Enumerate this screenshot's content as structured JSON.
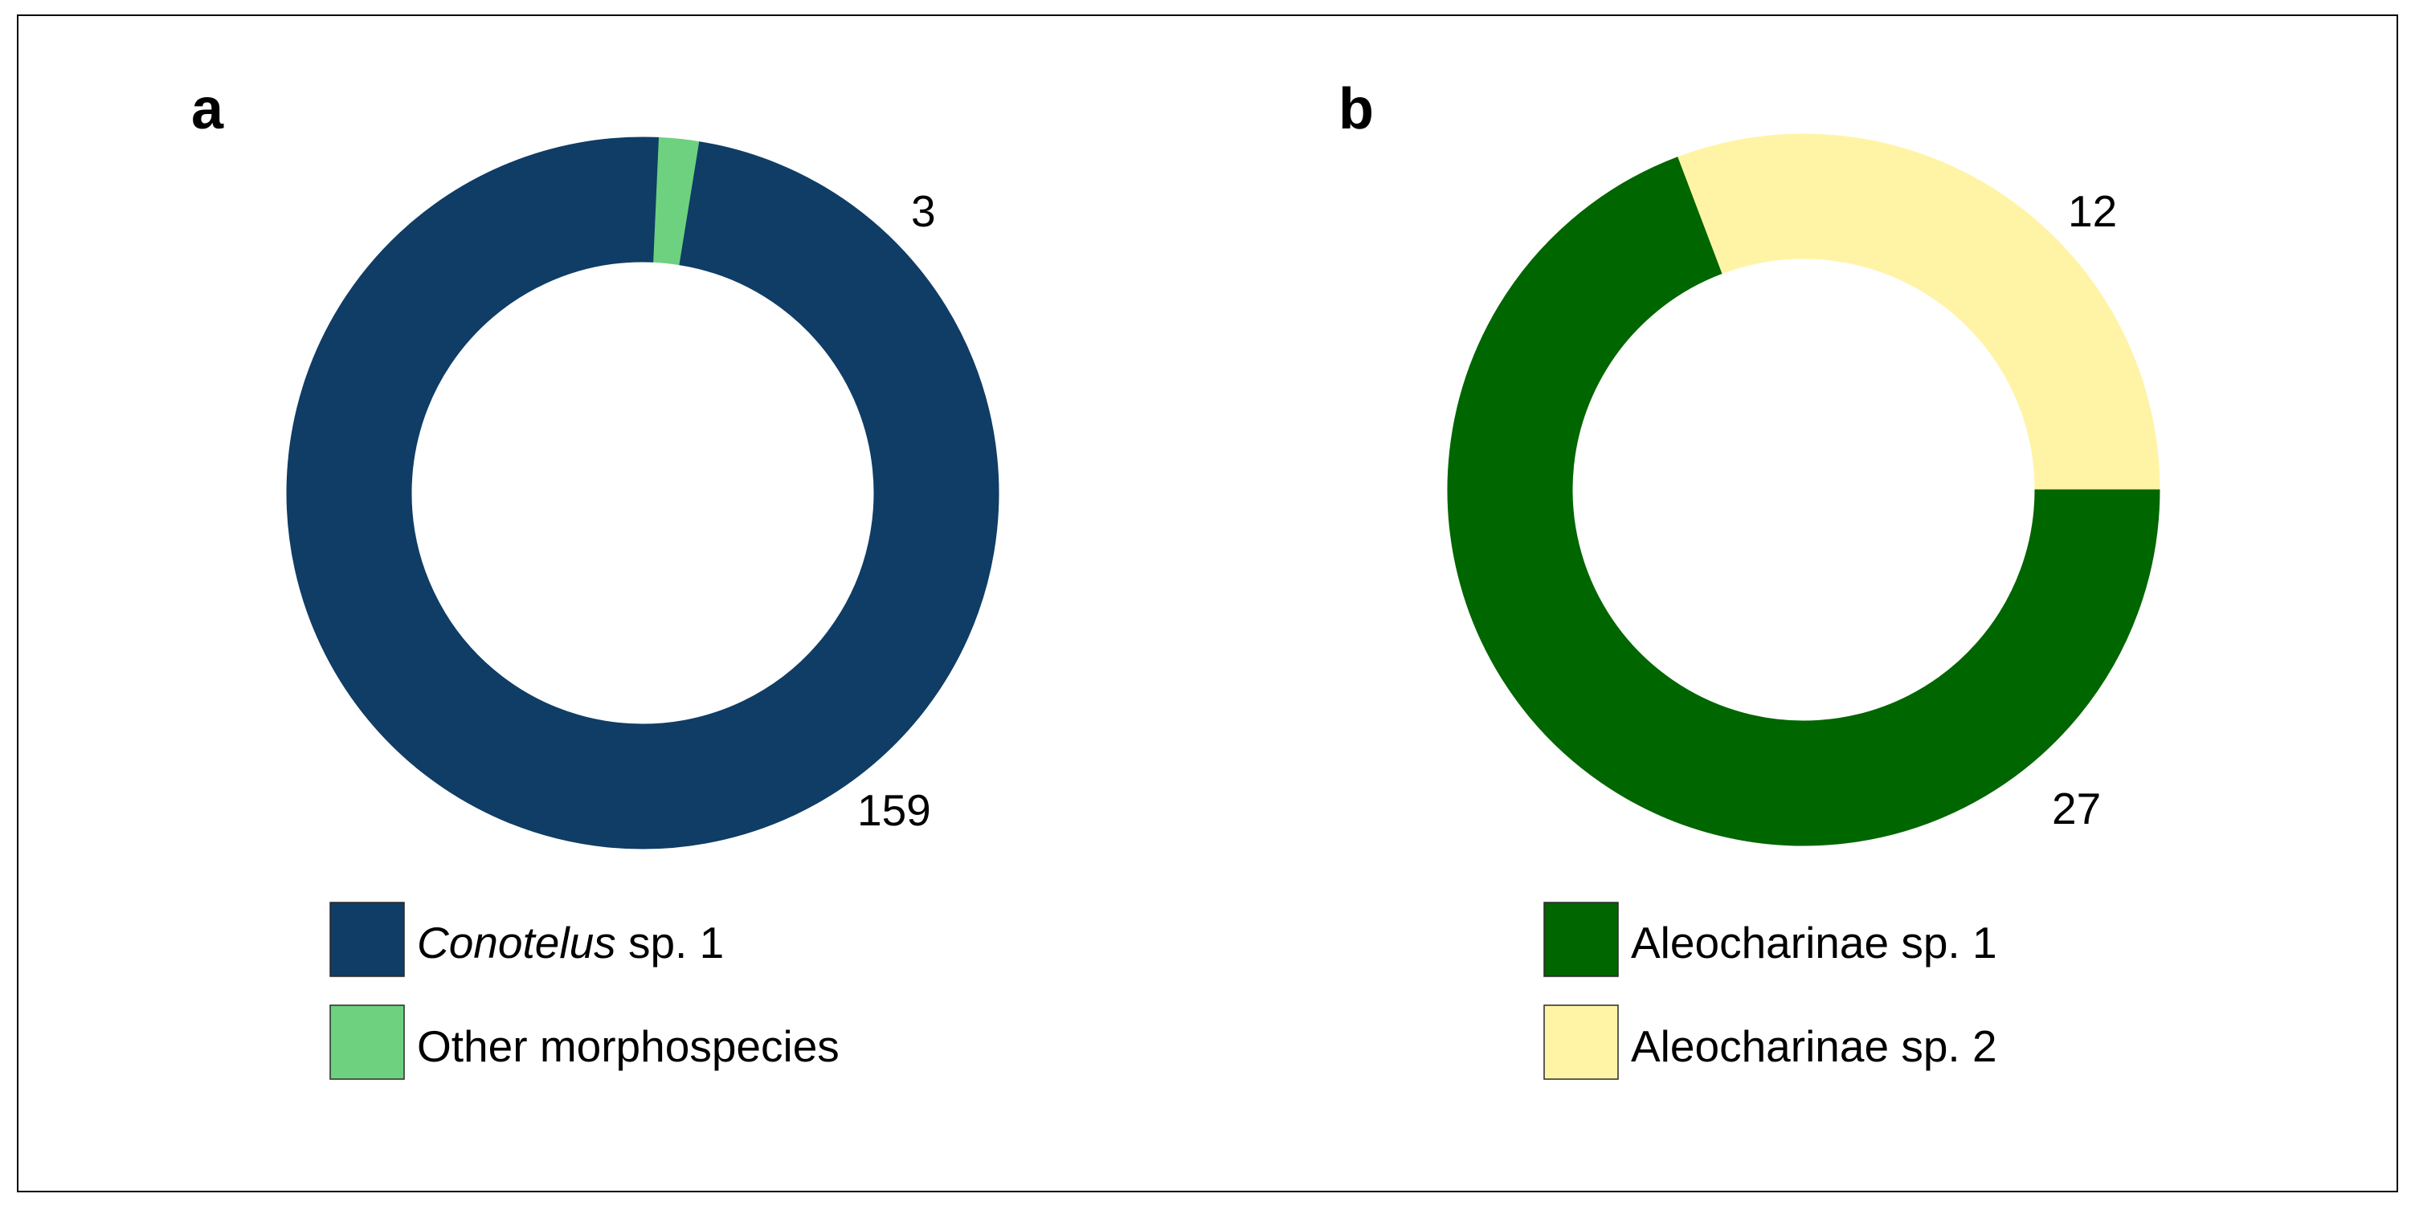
{
  "chart_data": [
    {
      "panel": "a",
      "type": "pie",
      "series": [
        {
          "name": "Conotelus sp. 1",
          "name_italic": "Conotelus",
          "name_rest": " sp. 1",
          "value": 159,
          "color": "#0f3d66"
        },
        {
          "name": "Other morphospecies",
          "value": 3,
          "color": "#6dd17f"
        }
      ],
      "labels": [
        "159",
        "3"
      ],
      "legend": "bottom"
    },
    {
      "panel": "b",
      "type": "pie",
      "series": [
        {
          "name": "Aleocharinae sp. 1",
          "value": 27,
          "color": "#006600"
        },
        {
          "name": "Aleocharinae sp. 2",
          "value": 12,
          "color": "#fff4a6"
        }
      ],
      "labels": [
        "27",
        "12"
      ],
      "legend": "bottom"
    }
  ]
}
